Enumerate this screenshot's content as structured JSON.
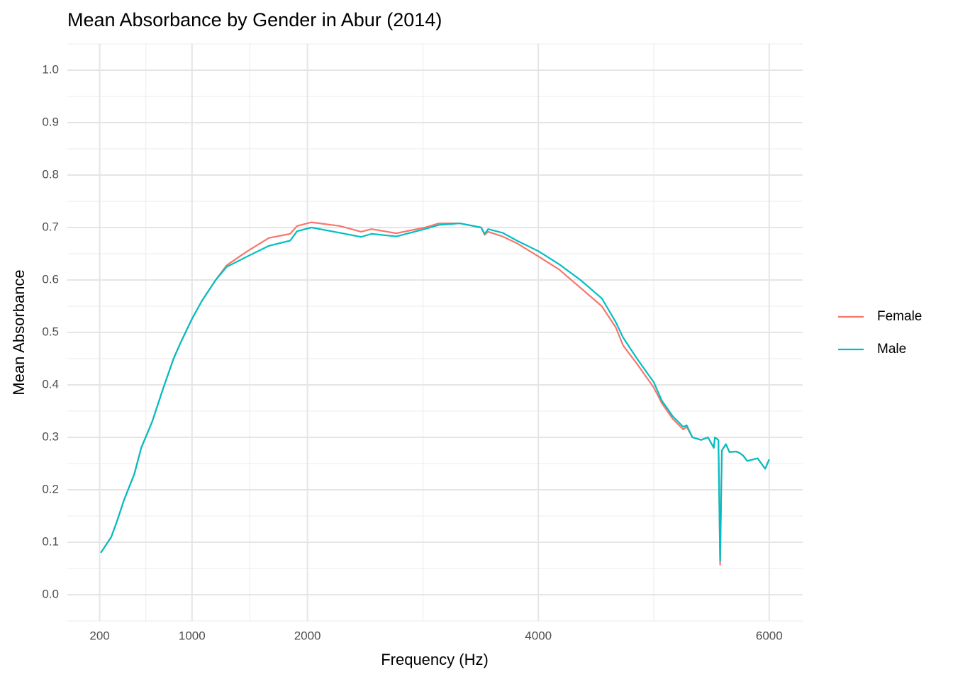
{
  "chart_data": {
    "type": "line",
    "title": "Mean Absorbance by Gender in Abur (2014)",
    "x_label": "Frequency (Hz)",
    "y_label": "Mean Absorbance",
    "x": [
      210,
      300,
      350,
      410,
      500,
      560,
      655,
      745,
      840,
      900,
      1000,
      1085,
      1205,
      1300,
      1480,
      1665,
      1850,
      1910,
      2035,
      2280,
      2465,
      2555,
      2770,
      3015,
      3140,
      3320,
      3505,
      3535,
      3565,
      3690,
      3815,
      4000,
      4180,
      4365,
      4550,
      4670,
      4735,
      4855,
      5000,
      5070,
      5165,
      5255,
      5285,
      5335,
      5410,
      5470,
      5520,
      5530,
      5560,
      5575,
      5590,
      5625,
      5655,
      5715,
      5745,
      5775,
      5810,
      5900,
      5965,
      6000
    ],
    "series": [
      {
        "name": "Female",
        "color": "#F8766D",
        "values": [
          0.08,
          0.11,
          0.14,
          0.18,
          0.23,
          0.28,
          0.33,
          0.39,
          0.45,
          0.48,
          0.526,
          0.56,
          0.6,
          0.628,
          0.655,
          0.68,
          0.688,
          0.703,
          0.71,
          0.703,
          0.692,
          0.697,
          0.689,
          0.7,
          0.708,
          0.708,
          0.7,
          0.686,
          0.692,
          0.683,
          0.67,
          0.645,
          0.62,
          0.585,
          0.55,
          0.51,
          0.475,
          0.44,
          0.395,
          0.365,
          0.335,
          0.315,
          0.32,
          0.3,
          0.295,
          0.3,
          0.28,
          0.3,
          0.295,
          0.057,
          0.275,
          0.287,
          0.272,
          0.273,
          0.27,
          0.265,
          0.255,
          0.26,
          0.24,
          0.258
        ]
      },
      {
        "name": "Male",
        "color": "#00BFC4",
        "values": [
          0.08,
          0.11,
          0.14,
          0.18,
          0.23,
          0.28,
          0.33,
          0.39,
          0.45,
          0.48,
          0.526,
          0.56,
          0.6,
          0.625,
          0.645,
          0.665,
          0.675,
          0.693,
          0.7,
          0.69,
          0.682,
          0.688,
          0.683,
          0.697,
          0.705,
          0.708,
          0.7,
          0.688,
          0.697,
          0.69,
          0.675,
          0.655,
          0.63,
          0.6,
          0.565,
          0.52,
          0.49,
          0.45,
          0.405,
          0.37,
          0.34,
          0.32,
          0.323,
          0.3,
          0.295,
          0.3,
          0.28,
          0.3,
          0.295,
          0.065,
          0.275,
          0.287,
          0.272,
          0.273,
          0.27,
          0.265,
          0.255,
          0.26,
          0.24,
          0.258
        ]
      }
    ],
    "xlim": [
      -80,
      6290
    ],
    "xticks": [
      200,
      1000,
      2000,
      4000,
      6000
    ],
    "ylim": [
      -0.05,
      1.05
    ],
    "yticks": [
      {
        "value": 0,
        "label": "0.0"
      },
      0.1,
      0.2,
      0.3,
      0.4,
      0.5,
      0.6,
      0.7,
      0.8,
      0.9,
      {
        "value": 1,
        "label": "1.0"
      }
    ],
    "grid": true,
    "legend": "right"
  }
}
